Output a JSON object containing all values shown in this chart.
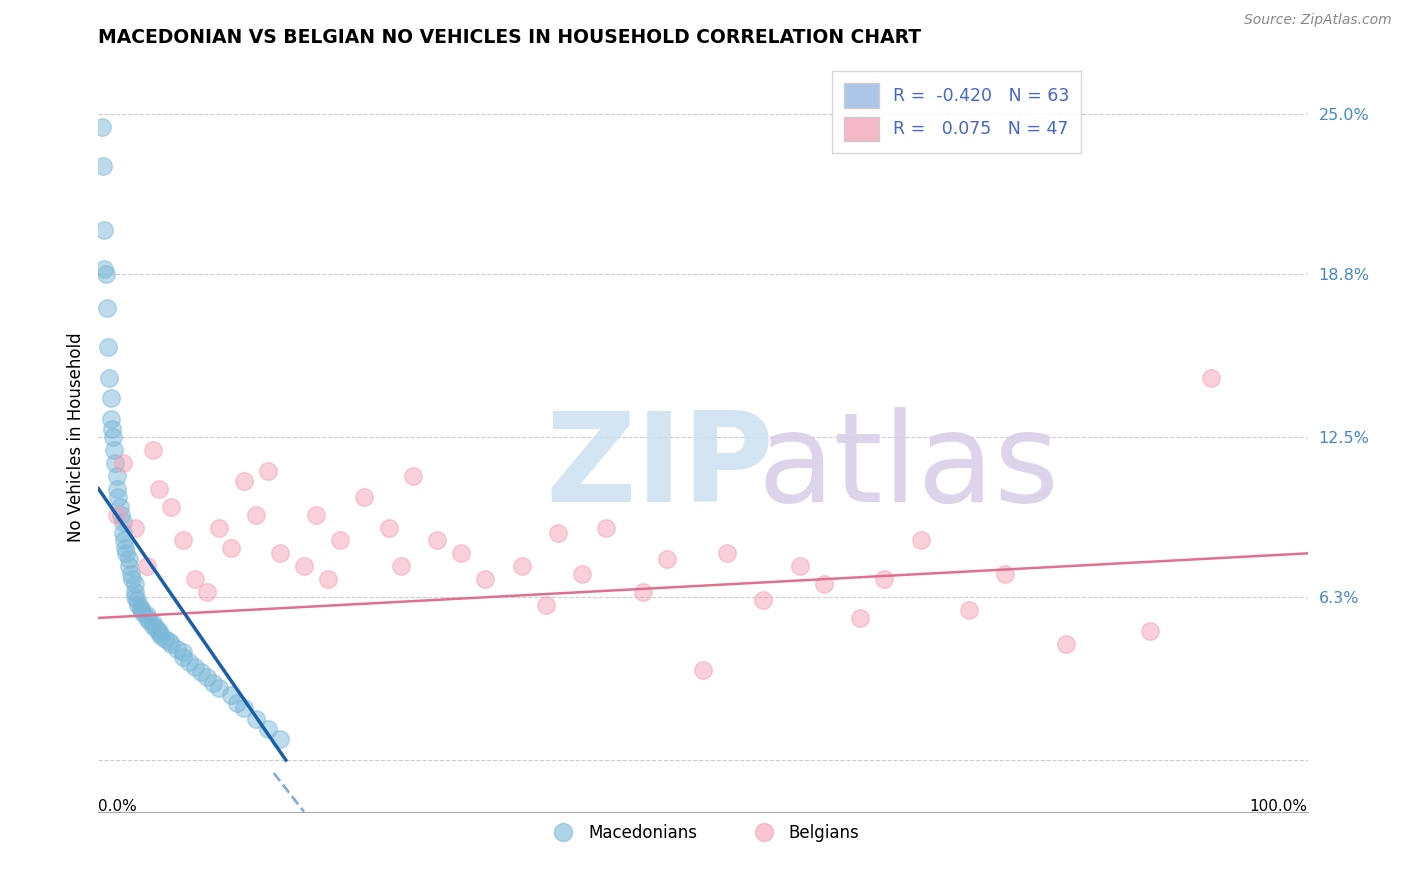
{
  "title": "MACEDONIAN VS BELGIAN NO VEHICLES IN HOUSEHOLD CORRELATION CHART",
  "source": "Source: ZipAtlas.com",
  "ylabel": "No Vehicles in Household",
  "xlim": [
    0,
    100
  ],
  "ylim": [
    -2,
    27
  ],
  "yticks": [
    0,
    6.3,
    12.5,
    18.8,
    25.0
  ],
  "ytick_labels": [
    "",
    "6.3%",
    "12.5%",
    "18.8%",
    "25.0%"
  ],
  "macedonian_color": "#7bb8d8",
  "belgian_color": "#f4a0b5",
  "blue_line_color": "#1a5fa8",
  "pink_line_color": "#e07090",
  "legend_patch_blue": "#adc6e8",
  "legend_patch_pink": "#f4b8c8",
  "legend_text_color": "#4466cc",
  "grid_color": "#cccccc",
  "mac_x": [
    0.3,
    0.4,
    0.5,
    0.5,
    0.6,
    0.7,
    0.8,
    0.9,
    1.0,
    1.0,
    1.1,
    1.2,
    1.3,
    1.4,
    1.5,
    1.5,
    1.6,
    1.8,
    1.9,
    2.0,
    2.0,
    2.1,
    2.2,
    2.3,
    2.5,
    2.5,
    2.7,
    2.8,
    3.0,
    3.0,
    3.0,
    3.2,
    3.3,
    3.5,
    3.5,
    3.7,
    4.0,
    4.0,
    4.2,
    4.5,
    4.5,
    4.8,
    5.0,
    5.0,
    5.2,
    5.5,
    5.8,
    6.0,
    6.5,
    7.0,
    7.0,
    7.5,
    8.0,
    8.5,
    9.0,
    9.5,
    10.0,
    11.0,
    11.5,
    12.0,
    13.0,
    14.0,
    15.0
  ],
  "mac_y": [
    24.5,
    23.0,
    20.5,
    19.0,
    18.8,
    17.5,
    16.0,
    14.8,
    14.0,
    13.2,
    12.8,
    12.5,
    12.0,
    11.5,
    11.0,
    10.5,
    10.2,
    9.8,
    9.5,
    9.2,
    8.8,
    8.5,
    8.2,
    8.0,
    7.8,
    7.5,
    7.2,
    7.0,
    6.8,
    6.5,
    6.3,
    6.2,
    6.0,
    5.9,
    5.8,
    5.7,
    5.6,
    5.5,
    5.4,
    5.3,
    5.2,
    5.1,
    5.0,
    4.9,
    4.8,
    4.7,
    4.6,
    4.5,
    4.3,
    4.2,
    4.0,
    3.8,
    3.6,
    3.4,
    3.2,
    3.0,
    2.8,
    2.5,
    2.2,
    2.0,
    1.6,
    1.2,
    0.8
  ],
  "bel_x": [
    1.5,
    2.0,
    3.0,
    4.0,
    4.5,
    5.0,
    6.0,
    7.0,
    8.0,
    9.0,
    10.0,
    11.0,
    12.0,
    13.0,
    14.0,
    15.0,
    17.0,
    18.0,
    19.0,
    20.0,
    22.0,
    24.0,
    25.0,
    26.0,
    28.0,
    30.0,
    32.0,
    35.0,
    37.0,
    38.0,
    40.0,
    42.0,
    45.0,
    47.0,
    50.0,
    52.0,
    55.0,
    58.0,
    60.0,
    63.0,
    65.0,
    68.0,
    72.0,
    75.0,
    80.0,
    87.0,
    92.0
  ],
  "bel_y": [
    9.5,
    11.5,
    9.0,
    7.5,
    12.0,
    10.5,
    9.8,
    8.5,
    7.0,
    6.5,
    9.0,
    8.2,
    10.8,
    9.5,
    11.2,
    8.0,
    7.5,
    9.5,
    7.0,
    8.5,
    10.2,
    9.0,
    7.5,
    11.0,
    8.5,
    8.0,
    7.0,
    7.5,
    6.0,
    8.8,
    7.2,
    9.0,
    6.5,
    7.8,
    3.5,
    8.0,
    6.2,
    7.5,
    6.8,
    5.5,
    7.0,
    8.5,
    5.8,
    7.2,
    4.5,
    5.0,
    14.8
  ],
  "blue_line_x": [
    0.0,
    15.5
  ],
  "blue_line_y": [
    10.5,
    0.0
  ],
  "pink_line_x": [
    0.0,
    100.0
  ],
  "pink_line_y": [
    5.5,
    8.0
  ]
}
